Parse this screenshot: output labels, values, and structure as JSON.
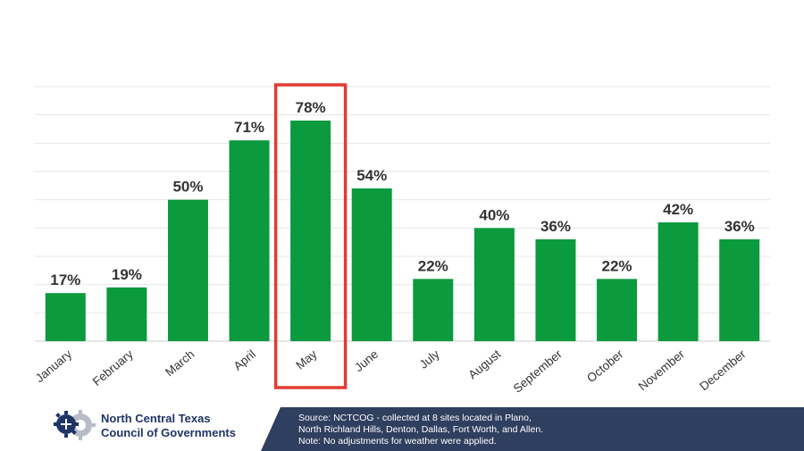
{
  "chart_data": {
    "type": "bar",
    "categories": [
      "January",
      "February",
      "March",
      "April",
      "May",
      "June",
      "July",
      "August",
      "September",
      "October",
      "November",
      "December"
    ],
    "values": [
      17,
      19,
      50,
      71,
      78,
      54,
      22,
      40,
      36,
      22,
      42,
      36
    ],
    "value_labels": [
      "17%",
      "19%",
      "50%",
      "71%",
      "78%",
      "54%",
      "22%",
      "40%",
      "36%",
      "22%",
      "42%",
      "36%"
    ],
    "ylim": [
      0,
      90
    ],
    "grid": true,
    "highlighted_category": "May",
    "bar_color": "#0b9a3e",
    "highlight_color": "#e23b32",
    "title": "",
    "xlabel": "",
    "ylabel": ""
  },
  "organization": {
    "name_line1": "North Central Texas",
    "name_line2": "Council of Governments",
    "logo_icon": "nctcog-gear-logo-icon"
  },
  "footer": {
    "line1": "Source: NCTCOG - collected at 8 sites located in Plano,",
    "line2": "North  Richland Hills, Denton, Dallas, Fort Worth,  and Allen.",
    "line3": "Note: No adjustments for weather were applied.",
    "color": "#2f3f5f"
  }
}
